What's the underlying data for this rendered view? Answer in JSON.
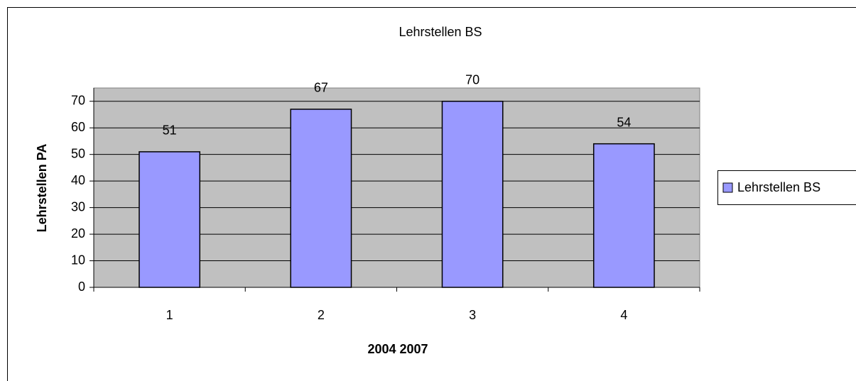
{
  "chart_data": {
    "type": "bar",
    "title": "Lehrstellen BS",
    "x_label": "2004 2007",
    "y_label": "Lehrstellen PA",
    "categories": [
      "1",
      "2",
      "3",
      "4"
    ],
    "series": [
      {
        "name": "Lehrstellen BS",
        "color": "#9999ff",
        "values": [
          51,
          67,
          70,
          54
        ]
      }
    ],
    "ylim": [
      0,
      75
    ],
    "yticks": [
      0,
      10,
      20,
      30,
      40,
      50,
      60,
      70
    ],
    "grid": true,
    "legend": "right"
  }
}
